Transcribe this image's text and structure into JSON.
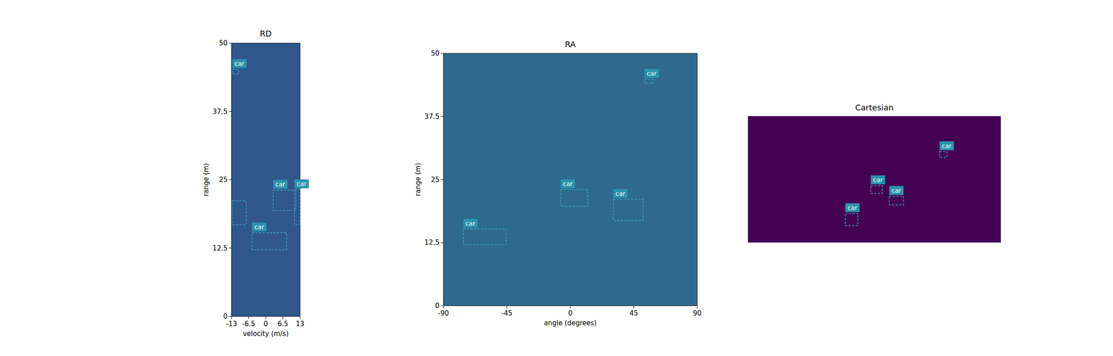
{
  "chart_data": [
    {
      "type": "heatmap",
      "title": "RD",
      "x_label": "velocity (m/s)",
      "y_label": "range (m)",
      "xlim": [
        -13,
        13
      ],
      "ylim": [
        0,
        50
      ],
      "xticks": [
        -13,
        -6.5,
        0,
        6.5,
        13
      ],
      "yticks": [
        0,
        12.5,
        25,
        37.5,
        50
      ],
      "color": "#30578c",
      "boxes": [
        {
          "label": "car",
          "x": [
            -12.7,
            -10.3
          ],
          "y": [
            44.4,
            45.2
          ]
        },
        {
          "label": null,
          "x": [
            -12.7,
            -7.4
          ],
          "y": [
            16.8,
            21.2
          ]
        },
        {
          "label": "car",
          "x": [
            2.8,
            11.4
          ],
          "y": [
            19.4,
            23.1
          ]
        },
        {
          "label": "car",
          "x": [
            10.9,
            13
          ],
          "y": [
            16.8,
            23.2
          ]
        },
        {
          "label": "car",
          "x": [
            -5.2,
            7.9
          ],
          "y": [
            12.2,
            15.3
          ]
        }
      ]
    },
    {
      "type": "heatmap",
      "title": "RA",
      "x_label": "angle (degrees)",
      "y_label": "range (m)",
      "xlim": [
        -90,
        90
      ],
      "ylim": [
        0,
        50
      ],
      "xticks": [
        -90,
        -45,
        0,
        45,
        90
      ],
      "yticks": [
        0,
        12.5,
        25,
        37.5,
        50
      ],
      "color": "#2f6a8d",
      "boxes": [
        {
          "label": "car",
          "x": [
            52.7,
            58.8
          ],
          "y": [
            44.1,
            44.9
          ]
        },
        {
          "label": "car",
          "x": [
            -6.8,
            12.4
          ],
          "y": [
            19.7,
            23.0
          ]
        },
        {
          "label": "car",
          "x": [
            30.5,
            51.7
          ],
          "y": [
            16.9,
            21.1
          ]
        },
        {
          "label": "car",
          "x": [
            -75.9,
            -45.6
          ],
          "y": [
            12.1,
            15.2
          ]
        }
      ]
    },
    {
      "type": "heatmap",
      "title": "Cartesian",
      "tick_labels": false,
      "xlim": [
        -50,
        50
      ],
      "ylim": [
        0,
        50
      ],
      "color": "#440154",
      "boxes": [
        {
          "label": "car",
          "x": [
            25.8,
            28.7
          ],
          "y": [
            33.7,
            36.0
          ]
        },
        {
          "label": "car",
          "x": [
            -1.4,
            3.1
          ],
          "y": [
            19.4,
            22.5
          ]
        },
        {
          "label": "car",
          "x": [
            5.9,
            11.5
          ],
          "y": [
            14.9,
            18.3
          ]
        },
        {
          "label": "car",
          "x": [
            -11.5,
            -6.5
          ],
          "y": [
            6.7,
            11.5
          ]
        }
      ]
    }
  ]
}
